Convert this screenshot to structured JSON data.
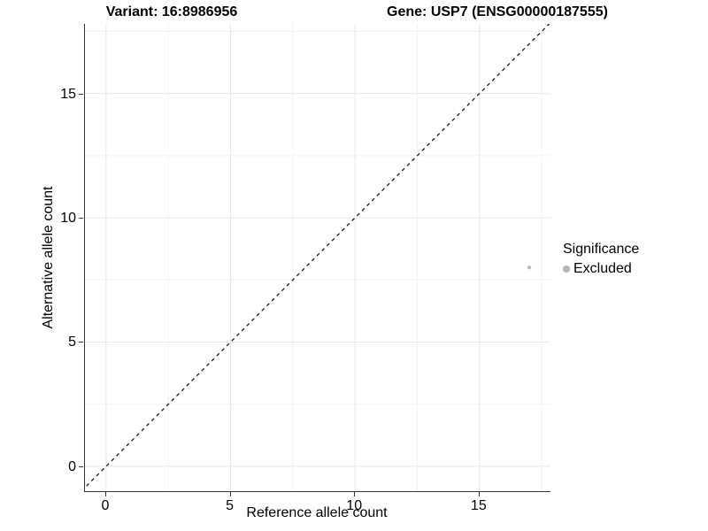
{
  "titles": {
    "variant": "Variant: 16:8986956",
    "gene": "Gene: USP7 (ENSG00000187555)"
  },
  "axes": {
    "x": {
      "label": "Reference allele count",
      "tick_labels": [
        "0",
        "5",
        "10",
        "15"
      ],
      "major_ticks": [
        0,
        5,
        10,
        15
      ],
      "minor_ticks": [
        2.5,
        7.5,
        12.5,
        17.5
      ]
    },
    "y": {
      "label": "Alternative allele count",
      "tick_labels": [
        "0",
        "5",
        "10",
        "15"
      ],
      "major_ticks": [
        0,
        5,
        10,
        15
      ],
      "minor_ticks": [
        2.5,
        7.5,
        12.5,
        17.5
      ]
    }
  },
  "legend": {
    "title": "Significance",
    "items": [
      {
        "label": "Excluded",
        "color": "#b5b5b5"
      }
    ]
  },
  "chart_data": {
    "type": "scatter",
    "title": "Variant: 16:8986956 | Gene: USP7 (ENSG00000187555)",
    "xlabel": "Reference allele count",
    "ylabel": "Alternative allele count",
    "xlim": [
      -0.85,
      17.85
    ],
    "ylim": [
      -1.0,
      17.8
    ],
    "xticks": [
      0,
      5,
      10,
      15
    ],
    "yticks": [
      0,
      5,
      10,
      15
    ],
    "grid": "major and minor, light gray on white",
    "legend_position": "right",
    "series": [
      {
        "name": "Excluded",
        "color": "#bcbcbc",
        "marker_size": 2.2,
        "points": [
          {
            "x": 17,
            "y": 8
          }
        ]
      }
    ],
    "reference_line": {
      "description": "identity line y = x",
      "style": "dashed",
      "color": "#1a1a1a"
    }
  },
  "colors": {
    "background": "#ffffff",
    "axis_line": "#333333",
    "grid_major": "#e7e7e7",
    "grid_minor": "#f3f3f3",
    "text": "#000000",
    "point": "#bcbcbc",
    "legend_key": "#b5b5b5",
    "diagonal": "#1a1a1a"
  }
}
